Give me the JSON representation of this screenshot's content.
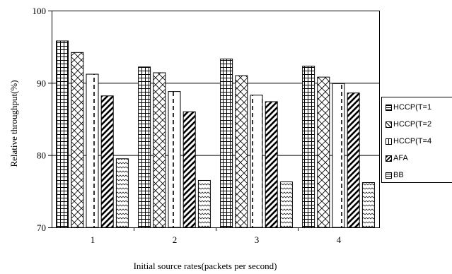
{
  "chart_data": {
    "type": "bar",
    "xlabel": "Initial source rates(packets per second)",
    "ylabel": "Relative throughput(%)",
    "categories": [
      "1",
      "2",
      "3",
      "4"
    ],
    "ylim": [
      70,
      100
    ],
    "yticks": [
      70,
      80,
      90,
      100
    ],
    "grid": true,
    "legend_position": "right",
    "series": [
      {
        "name": "HCCP(T=1",
        "pattern": "grid",
        "values": [
          95.8,
          92.2,
          93.3,
          92.3
        ]
      },
      {
        "name": "HCCP(T=2",
        "pattern": "crosshatch",
        "values": [
          94.2,
          91.4,
          91.0,
          90.8
        ]
      },
      {
        "name": "HCCP(T=4",
        "pattern": "vertical-dashed",
        "values": [
          91.2,
          88.8,
          88.3,
          89.9
        ]
      },
      {
        "name": "AFA",
        "pattern": "diagonal",
        "values": [
          88.2,
          86.0,
          87.4,
          88.6
        ]
      },
      {
        "name": "BB",
        "pattern": "zigzag",
        "values": [
          79.5,
          76.5,
          76.3,
          76.2
        ]
      }
    ]
  }
}
